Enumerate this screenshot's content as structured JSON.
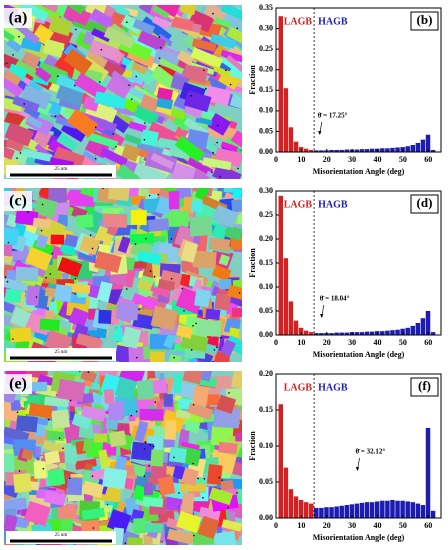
{
  "images": [
    {
      "label": "(a)",
      "scale_label": "25 um"
    },
    {
      "label": "(c)",
      "scale_label": "25 um"
    },
    {
      "label": "(e)",
      "scale_label": "25 um"
    }
  ],
  "chart_data": [
    {
      "type": "histogram",
      "panel_label": "(b)",
      "ylabel": "Fraction",
      "xlabel": "Misorientation Angle (deg)",
      "bins": [
        1,
        3,
        5,
        7,
        9,
        11,
        13,
        15,
        17,
        19,
        21,
        23,
        25,
        27,
        29,
        31,
        33,
        35,
        37,
        39,
        41,
        43,
        45,
        47,
        49,
        51,
        53,
        55,
        57,
        59,
        61,
        63
      ],
      "counts": [
        0.33,
        0.155,
        0.06,
        0.025,
        0.012,
        0.008,
        0.005,
        0.004,
        0.004,
        0.004,
        0.005,
        0.005,
        0.005,
        0.006,
        0.006,
        0.006,
        0.007,
        0.007,
        0.008,
        0.008,
        0.009,
        0.009,
        0.01,
        0.011,
        0.012,
        0.014,
        0.017,
        0.022,
        0.03,
        0.042,
        0.005
      ],
      "boundary": 15,
      "low_name": "LAGB",
      "high_name": "HAGB",
      "low_color": "#d42020",
      "high_color": "#1c1cb4",
      "mean": {
        "value": 17.25,
        "label": "θ̄ = 17.25°"
      },
      "xlim": [
        0,
        65
      ],
      "xticks": [
        0,
        10,
        20,
        30,
        40,
        50,
        60
      ],
      "ylim": [
        0,
        0.35
      ],
      "yticks": [
        {
          "value": 0,
          "label": "0.00"
        },
        {
          "value": 0.05,
          "label": "0.05"
        },
        {
          "value": 0.1,
          "label": "0.10"
        },
        {
          "value": 0.15,
          "label": "0.15"
        },
        {
          "value": 0.2,
          "label": "0.20"
        },
        {
          "value": 0.25,
          "label": "0.25"
        },
        {
          "value": 0.3,
          "label": "0.30"
        },
        {
          "value": 0.35,
          "label": "0.35"
        }
      ]
    },
    {
      "type": "histogram",
      "panel_label": "(d)",
      "ylabel": "Fraction",
      "xlabel": "Misorientation Angle (deg)",
      "bins": [
        1,
        3,
        5,
        7,
        9,
        11,
        13,
        15,
        17,
        19,
        21,
        23,
        25,
        27,
        29,
        31,
        33,
        35,
        37,
        39,
        41,
        43,
        45,
        47,
        49,
        51,
        53,
        55,
        57,
        59,
        61,
        63
      ],
      "counts": [
        0.29,
        0.16,
        0.07,
        0.03,
        0.015,
        0.009,
        0.006,
        0.004,
        0.004,
        0.004,
        0.004,
        0.005,
        0.005,
        0.005,
        0.006,
        0.006,
        0.006,
        0.007,
        0.007,
        0.008,
        0.008,
        0.009,
        0.01,
        0.011,
        0.013,
        0.015,
        0.019,
        0.025,
        0.035,
        0.05,
        0.006
      ],
      "boundary": 15,
      "low_name": "LAGB",
      "high_name": "HAGB",
      "low_color": "#d42020",
      "high_color": "#1c1cb4",
      "mean": {
        "value": 18.04,
        "label": "θ̄ = 18.04°"
      },
      "xlim": [
        0,
        65
      ],
      "xticks": [
        0,
        10,
        20,
        30,
        40,
        50,
        60
      ],
      "ylim": [
        0,
        0.3
      ],
      "yticks": [
        {
          "value": 0,
          "label": "0.00"
        },
        {
          "value": 0.05,
          "label": "0.05"
        },
        {
          "value": 0.1,
          "label": "0.10"
        },
        {
          "value": 0.15,
          "label": "0.15"
        },
        {
          "value": 0.2,
          "label": "0.20"
        },
        {
          "value": 0.25,
          "label": "0.25"
        },
        {
          "value": 0.3,
          "label": "0.30"
        }
      ]
    },
    {
      "type": "histogram",
      "panel_label": "(f)",
      "ylabel": "Fraction",
      "xlabel": "Misorientation Angle (deg)",
      "bins": [
        1,
        3,
        5,
        7,
        9,
        11,
        13,
        15,
        17,
        19,
        21,
        23,
        25,
        27,
        29,
        31,
        33,
        35,
        37,
        39,
        41,
        43,
        45,
        47,
        49,
        51,
        53,
        55,
        57,
        59,
        61,
        63
      ],
      "counts": [
        0.158,
        0.07,
        0.04,
        0.03,
        0.025,
        0.022,
        0.02,
        0.014,
        0.014,
        0.015,
        0.015,
        0.016,
        0.017,
        0.018,
        0.019,
        0.02,
        0.021,
        0.022,
        0.022,
        0.023,
        0.024,
        0.024,
        0.025,
        0.024,
        0.024,
        0.023,
        0.022,
        0.02,
        0.018,
        0.125,
        0.01
      ],
      "boundary": 15,
      "low_name": "LAGB",
      "high_name": "HAGB",
      "low_color": "#d42020",
      "high_color": "#1c1cb4",
      "mean": {
        "value": 32.12,
        "label": "θ̄ = 32.12°"
      },
      "xlim": [
        0,
        65
      ],
      "xticks": [
        0,
        10,
        20,
        30,
        40,
        50,
        60
      ],
      "ylim": [
        0,
        0.2
      ],
      "yticks": [
        {
          "value": 0,
          "label": "0.00"
        },
        {
          "value": 0.05,
          "label": "0.05"
        },
        {
          "value": 0.1,
          "label": "0.10"
        },
        {
          "value": 0.15,
          "label": "0.15"
        },
        {
          "value": 0.2,
          "label": "0.20"
        }
      ]
    }
  ]
}
